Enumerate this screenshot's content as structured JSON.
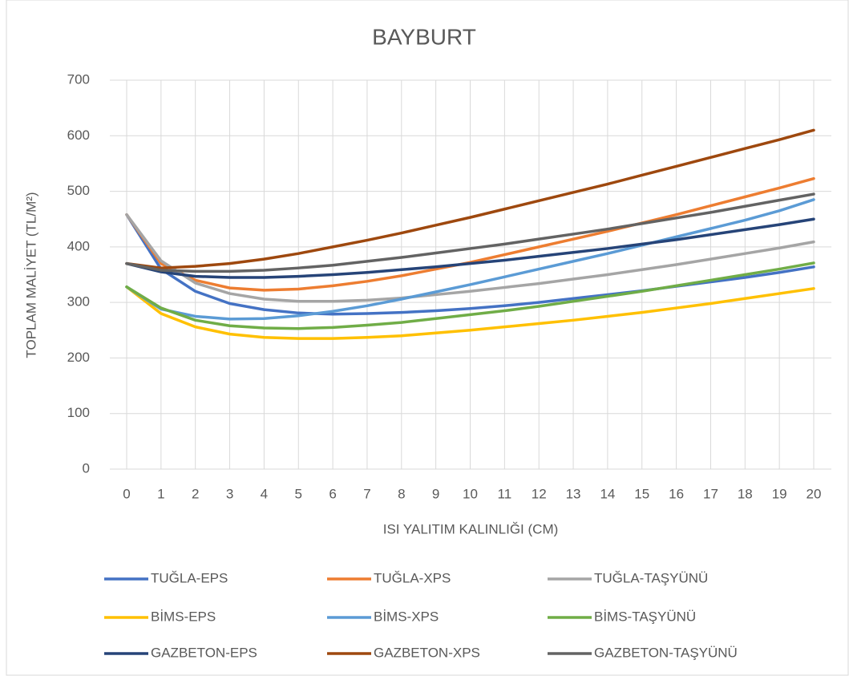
{
  "chart_data": {
    "type": "line",
    "title": "BAYBURT",
    "x_label": "ISI YALITIM KALINLIĞI (CM)",
    "y_label": "TOPLAM MALİYET (TL/M²)",
    "categories": [
      0,
      1,
      2,
      3,
      4,
      5,
      6,
      7,
      8,
      9,
      10,
      11,
      12,
      13,
      14,
      15,
      16,
      17,
      18,
      19,
      20
    ],
    "ylim": [
      0,
      700
    ],
    "yticks": [
      0,
      100,
      200,
      300,
      400,
      500,
      600,
      700
    ],
    "grid": true,
    "legend": "bottom",
    "series": [
      {
        "name": "TUĞLA-EPS",
        "color": "#4472c4",
        "values": [
          458,
          360,
          320,
          298,
          287,
          281,
          279,
          280,
          282,
          285,
          289,
          294,
          300,
          307,
          314,
          321,
          329,
          337,
          345,
          354,
          364
        ]
      },
      {
        "name": "TUĞLA-XPS",
        "color": "#ed7d31",
        "values": [
          458,
          370,
          340,
          326,
          322,
          324,
          330,
          338,
          348,
          360,
          372,
          386,
          400,
          414,
          428,
          443,
          458,
          474,
          490,
          506,
          523
        ]
      },
      {
        "name": "TUĞLA-TAŞYÜNÜ",
        "color": "#a5a5a5",
        "values": [
          458,
          375,
          335,
          316,
          306,
          302,
          302,
          304,
          308,
          314,
          320,
          327,
          334,
          342,
          350,
          359,
          368,
          378,
          388,
          398,
          409
        ]
      },
      {
        "name": "BİMS-EPS",
        "color": "#ffc000",
        "values": [
          328,
          280,
          256,
          243,
          237,
          235,
          235,
          237,
          240,
          245,
          250,
          256,
          262,
          268,
          275,
          282,
          290,
          298,
          307,
          316,
          325
        ]
      },
      {
        "name": "BİMS-XPS",
        "color": "#5b9bd5",
        "values": [
          328,
          288,
          275,
          270,
          271,
          276,
          284,
          294,
          306,
          319,
          332,
          346,
          360,
          374,
          388,
          403,
          418,
          433,
          448,
          465,
          485
        ]
      },
      {
        "name": "BİMS-TAŞYÜNÜ",
        "color": "#70ad47",
        "values": [
          328,
          290,
          268,
          258,
          254,
          253,
          255,
          259,
          264,
          271,
          278,
          285,
          293,
          302,
          311,
          320,
          330,
          340,
          350,
          360,
          371
        ]
      },
      {
        "name": "GAZBETON-EPS",
        "color": "#264478",
        "values": [
          370,
          355,
          347,
          345,
          345,
          347,
          350,
          354,
          359,
          364,
          370,
          376,
          383,
          390,
          397,
          405,
          413,
          422,
          431,
          440,
          450
        ]
      },
      {
        "name": "GAZBETON-XPS",
        "color": "#9e480e",
        "values": [
          370,
          362,
          365,
          370,
          378,
          388,
          400,
          412,
          425,
          439,
          453,
          468,
          483,
          498,
          513,
          529,
          545,
          561,
          577,
          593,
          610
        ]
      },
      {
        "name": "GAZBETON-TAŞYÜNÜ",
        "color": "#636363",
        "values": [
          370,
          358,
          356,
          356,
          358,
          362,
          367,
          374,
          381,
          389,
          397,
          405,
          414,
          423,
          432,
          442,
          452,
          462,
          473,
          484,
          495
        ]
      }
    ]
  }
}
